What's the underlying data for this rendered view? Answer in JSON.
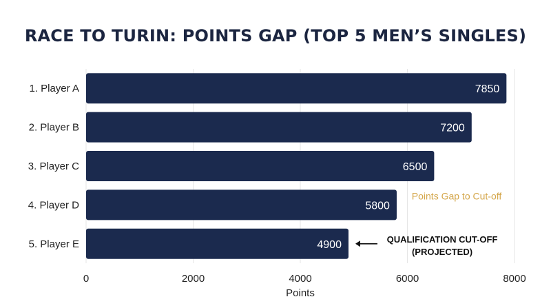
{
  "chart_data": {
    "type": "bar",
    "orientation": "horizontal",
    "title": "RACE TO TURIN: POINTS GAP (TOP 5 MEN’S SINGLES)",
    "categories": [
      "1. Player A",
      "2. Player B",
      "3. Player C",
      "4. Player D",
      "5. Player E"
    ],
    "values": [
      7850,
      7200,
      6500,
      5800,
      4900
    ],
    "xlabel": "Points",
    "ylabel": "",
    "xlim": [
      0,
      8000
    ],
    "xticks": [
      0,
      2000,
      4000,
      6000,
      8000
    ],
    "grid": true,
    "annotations": {
      "highlight_label": "Points Gap to Cut-off",
      "cutoff_label_line1": "QUALIFICATION CUT-OFF",
      "cutoff_label_line2": "(PROJECTED)"
    },
    "colors": {
      "bar": "#1b2a4e",
      "highlight": "#f5a623",
      "highlight_text": "#d4a64a",
      "grid": "#e6e6e6"
    }
  }
}
